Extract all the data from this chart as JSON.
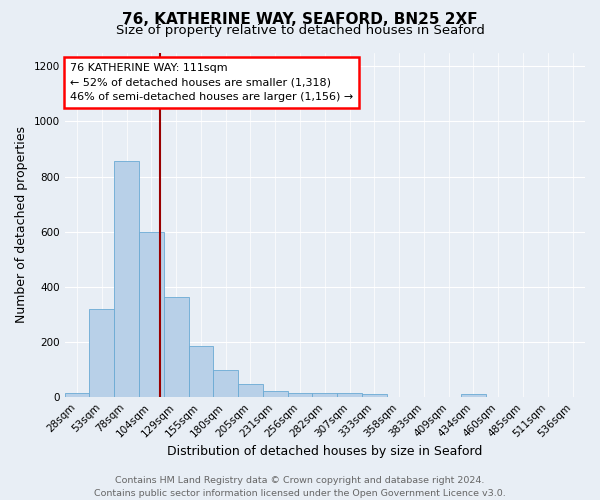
{
  "title1": "76, KATHERINE WAY, SEAFORD, BN25 2XF",
  "title2": "Size of property relative to detached houses in Seaford",
  "xlabel": "Distribution of detached houses by size in Seaford",
  "ylabel": "Number of detached properties",
  "categories": [
    "28sqm",
    "53sqm",
    "78sqm",
    "104sqm",
    "129sqm",
    "155sqm",
    "180sqm",
    "205sqm",
    "231sqm",
    "256sqm",
    "282sqm",
    "307sqm",
    "333sqm",
    "358sqm",
    "383sqm",
    "409sqm",
    "434sqm",
    "460sqm",
    "485sqm",
    "511sqm",
    "536sqm"
  ],
  "values": [
    15,
    320,
    855,
    600,
    365,
    185,
    100,
    47,
    22,
    17,
    17,
    17,
    10,
    0,
    0,
    0,
    10,
    0,
    0,
    0,
    0
  ],
  "bar_color": "#b8d0e8",
  "bar_edge_color": "#6aaad4",
  "ylim": [
    0,
    1250
  ],
  "yticks": [
    0,
    200,
    400,
    600,
    800,
    1000,
    1200
  ],
  "red_line_x": 3.35,
  "annotation_line1": "76 KATHERINE WAY: 111sqm",
  "annotation_line2": "← 52% of detached houses are smaller (1,318)",
  "annotation_line3": "46% of semi-detached houses are larger (1,156) →",
  "footer_text": "Contains HM Land Registry data © Crown copyright and database right 2024.\nContains public sector information licensed under the Open Government Licence v3.0.",
  "background_color": "#e8eef5",
  "grid_color": "#ffffff",
  "title1_fontsize": 11,
  "title2_fontsize": 9.5,
  "xlabel_fontsize": 9,
  "ylabel_fontsize": 9,
  "tick_fontsize": 7.5,
  "footer_fontsize": 6.8,
  "annot_fontsize": 8.0
}
